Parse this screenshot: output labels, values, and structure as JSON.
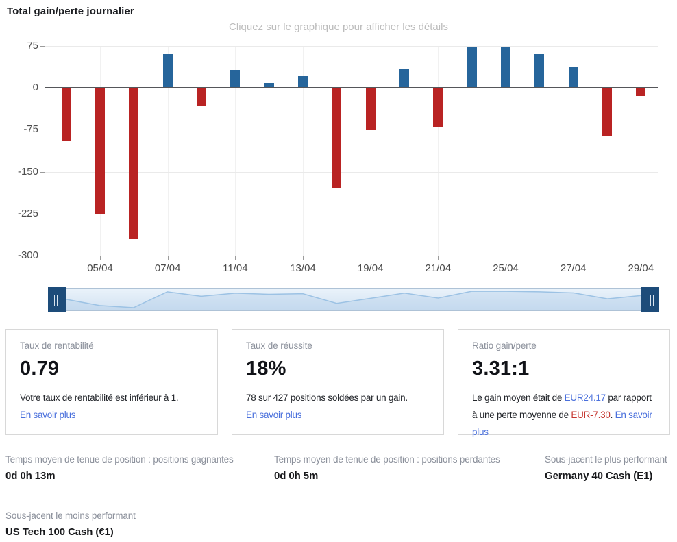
{
  "header": {
    "title": "Total gain/perte journalier",
    "subtitle": "Cliquez sur le graphique pour afficher les détails"
  },
  "chart_data": {
    "type": "bar",
    "title": "Total gain/perte journalier",
    "categories": [
      "04/04",
      "05/04",
      "06/04",
      "07/04",
      "08/04",
      "11/04",
      "12/04",
      "13/04",
      "14/04",
      "19/04",
      "20/04",
      "21/04",
      "22/04",
      "25/04",
      "26/04",
      "27/04",
      "28/04",
      "29/04"
    ],
    "values": [
      -95,
      -225,
      -270,
      60,
      -33,
      32,
      9,
      21,
      -180,
      -75,
      33,
      -70,
      73,
      72,
      60,
      37,
      -85,
      -15
    ],
    "xtick_labels": [
      "05/04",
      "07/04",
      "11/04",
      "13/04",
      "19/04",
      "21/04",
      "25/04",
      "27/04",
      "29/04"
    ],
    "yticks": [
      75,
      0,
      -75,
      -150,
      -225,
      -300
    ],
    "ylim": [
      -300,
      75
    ],
    "xlabel": "",
    "ylabel": "",
    "grid": true,
    "legend": "none",
    "navigator": true,
    "colors": {
      "positive": "#26659b",
      "negative": "#b92323"
    }
  },
  "navigator": {
    "left_handle": "drag-handle",
    "right_handle": "drag-handle"
  },
  "cards": [
    {
      "label": "Taux de rentabilité",
      "value": "0.79",
      "description": "Votre taux de rentabilité est inférieur à 1.",
      "link": "En savoir plus"
    },
    {
      "label": "Taux de réussite",
      "value": "18%",
      "description": "78 sur 427 positions soldées par un gain.",
      "link": "En savoir plus"
    },
    {
      "label": "Ratio gain/perte",
      "value": "3.31:1",
      "description_part1": "Le gain moyen était de ",
      "gain_value": "EUR24.17",
      "description_part2": " par rapport à une perte moyenne de ",
      "loss_value": "EUR-7.30",
      "description_part3": ". ",
      "link": "En savoir plus"
    }
  ],
  "stats": [
    {
      "label": "Temps moyen de tenue de position : positions gagnantes",
      "value": "0d 0h 13m"
    },
    {
      "label": "Temps moyen de tenue de position : positions perdantes",
      "value": "0d 0h 5m"
    },
    {
      "label": "Sous-jacent le plus performant",
      "value": "Germany 40 Cash (E1)"
    },
    {
      "label": "Sous-jacent le moins performant",
      "value": "US Tech 100 Cash (€1)"
    }
  ],
  "colors": {
    "positive_bar": "#26659b",
    "negative_bar": "#b92323",
    "link": "#4a70dc",
    "loss_text": "#c5352e",
    "navigator_handle": "#1d4c7a"
  }
}
